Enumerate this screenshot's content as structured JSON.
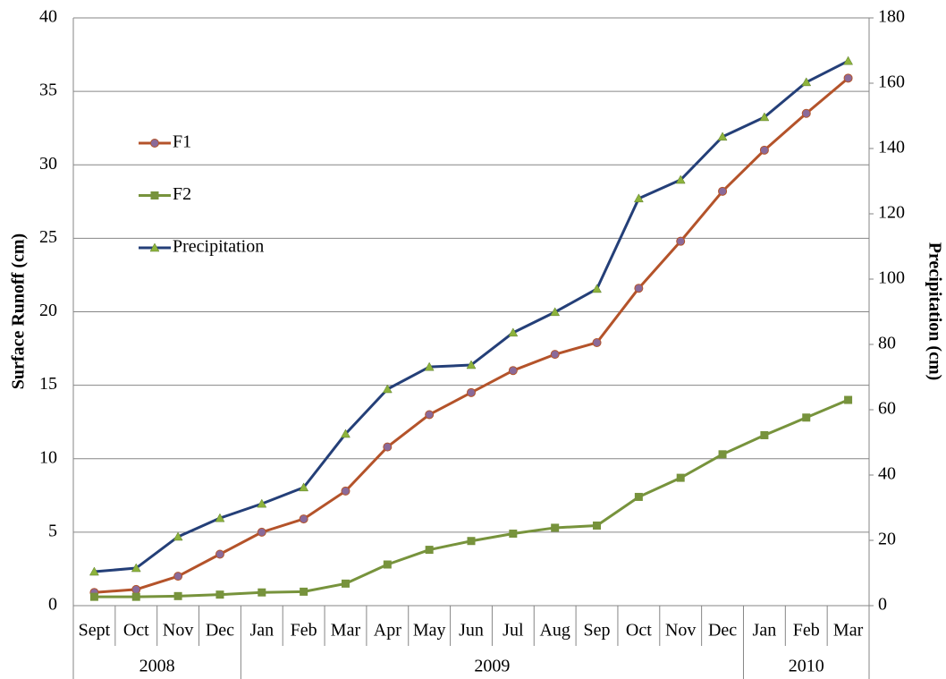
{
  "chart_data": {
    "type": "line",
    "categories": [
      "Sept",
      "Oct",
      "Nov",
      "Dec",
      "Jan",
      "Feb",
      "Mar",
      "Apr",
      "May",
      "Jun",
      "Jul",
      "Aug",
      "Sep",
      "Oct",
      "Nov",
      "Dec",
      "Jan",
      "Feb",
      "Mar"
    ],
    "category_groups": [
      "2008",
      "2008",
      "2008",
      "2008",
      "2009",
      "2009",
      "2009",
      "2009",
      "2009",
      "2009",
      "2009",
      "2009",
      "2009",
      "2009",
      "2009",
      "2009",
      "2010",
      "2010",
      "2010"
    ],
    "y_label": "Surface Runoff (cm)",
    "y2_label": "Precipitation (cm)",
    "ylim": [
      0,
      40
    ],
    "yticks": [
      0,
      5,
      10,
      15,
      20,
      25,
      30,
      35,
      40
    ],
    "y2lim": [
      0,
      180
    ],
    "y2ticks": [
      0,
      20,
      40,
      60,
      80,
      100,
      120,
      140,
      160,
      180
    ],
    "grid": true,
    "legend": "left",
    "series": [
      {
        "name": "F1",
        "color": "#b4532a",
        "marker": "circle",
        "marker_color": "#8a6a9a",
        "values": [
          0.9,
          1.1,
          2.0,
          3.5,
          5.0,
          5.9,
          7.8,
          10.8,
          13.0,
          14.5,
          16.0,
          17.1,
          17.9,
          21.6,
          24.8,
          28.2,
          31.0,
          33.5,
          35.9
        ]
      },
      {
        "name": "F2",
        "color": "#77933c",
        "marker": "square",
        "marker_color": "#77933c",
        "values": [
          0.6,
          0.6,
          0.65,
          0.75,
          0.9,
          0.95,
          1.5,
          2.8,
          3.8,
          4.4,
          4.9,
          5.3,
          5.45,
          7.4,
          8.7,
          10.3,
          11.6,
          12.8,
          14.0
        ]
      },
      {
        "name": "Precipitation",
        "color": "#243f78",
        "marker": "triangle",
        "marker_color": "#8db33c",
        "axis": "y2",
        "values": [
          10.4,
          11.5,
          21.1,
          26.8,
          31.2,
          36.2,
          52.6,
          66.3,
          73.1,
          73.7,
          83.6,
          89.9,
          97.0,
          124.7,
          130.4,
          143.6,
          149.6,
          160.3,
          166.8
        ]
      }
    ]
  }
}
